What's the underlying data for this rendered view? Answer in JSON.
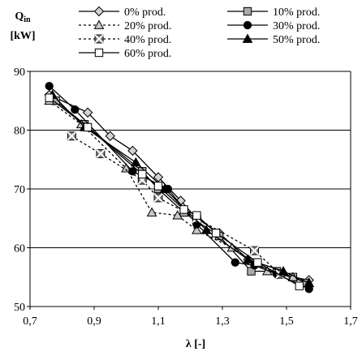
{
  "chart_data": {
    "type": "line",
    "ylabel_line1": "Q",
    "ylabel_sub": "in",
    "ylabel_line2": "[kW]",
    "xlabel": "λ [-]",
    "xlim": [
      0.7,
      1.7
    ],
    "ylim": [
      50,
      90
    ],
    "xticks": [
      0.7,
      0.9,
      1.1,
      1.3,
      1.5,
      1.7
    ],
    "xtick_labels": [
      "0,7",
      "0,9",
      "1,1",
      "1,3",
      "1,5",
      "1,7"
    ],
    "yticks": [
      50,
      60,
      70,
      80,
      90
    ],
    "ytick_labels": [
      "50",
      "60",
      "70",
      "80",
      "90"
    ],
    "grid": "horizontal",
    "legend_position": "top",
    "series": [
      {
        "name": "0% prod.",
        "marker": "diamond",
        "marker_fill": "#d3d3d3",
        "dash": "solid",
        "x": [
          0.76,
          0.88,
          0.95,
          1.02,
          1.1,
          1.17,
          1.22,
          1.29,
          1.38,
          1.47,
          1.57
        ],
        "y": [
          86,
          83,
          79,
          76.5,
          72,
          68,
          65,
          62.5,
          58,
          55.5,
          54.5
        ]
      },
      {
        "name": "10% prod.",
        "marker": "square",
        "marker_fill": "#a9a9a9",
        "dash": "solid",
        "x": [
          0.78,
          0.87,
          1.05,
          1.1,
          1.18,
          1.22,
          1.29,
          1.39,
          1.47,
          1.52,
          1.56
        ],
        "y": [
          85,
          81,
          73,
          70,
          66,
          64.5,
          62,
          56,
          56,
          55,
          54
        ]
      },
      {
        "name": "20% prod.",
        "marker": "triangle",
        "marker_fill": "#c8c8c8",
        "dash": "dotted",
        "x": [
          0.76,
          0.86,
          1.0,
          1.08,
          1.16,
          1.22,
          1.33,
          1.44,
          1.52,
          1.57
        ],
        "y": [
          85,
          81,
          73.5,
          66,
          65.5,
          63,
          60,
          56,
          55,
          54
        ]
      },
      {
        "name": "30% prod.",
        "marker": "circle",
        "marker_fill": "#000000",
        "dash": "solid",
        "x": [
          0.76,
          0.84,
          1.02,
          1.13,
          1.22,
          1.34,
          1.4,
          1.47,
          1.57
        ],
        "y": [
          87.5,
          83.5,
          73,
          70,
          64,
          57.5,
          57,
          55.5,
          53
        ]
      },
      {
        "name": "40% prod.",
        "marker": "x-square",
        "marker_fill": "#808080",
        "dash": "dotted",
        "x": [
          0.83,
          0.92,
          1.05,
          1.1,
          1.22,
          1.4,
          1.48
        ],
        "y": [
          79,
          76,
          71.5,
          68.5,
          65,
          59.5,
          55.5
        ]
      },
      {
        "name": "50% prod.",
        "marker": "triangle",
        "marker_fill": "#000000",
        "dash": "solid",
        "x": [
          0.77,
          0.87,
          1.03,
          1.12,
          1.25,
          1.38,
          1.49,
          1.57
        ],
        "y": [
          86,
          80.5,
          74.5,
          70,
          63,
          58,
          56,
          54
        ]
      },
      {
        "name": "60% prod.",
        "marker": "square",
        "marker_fill": "#ffffff",
        "dash": "solid",
        "x": [
          0.76,
          0.88,
          1.05,
          1.1,
          1.18,
          1.22,
          1.28,
          1.41,
          1.54
        ],
        "y": [
          85.5,
          80.5,
          72.5,
          70.5,
          66.5,
          65.5,
          62.5,
          57.5,
          53.5
        ]
      }
    ]
  }
}
